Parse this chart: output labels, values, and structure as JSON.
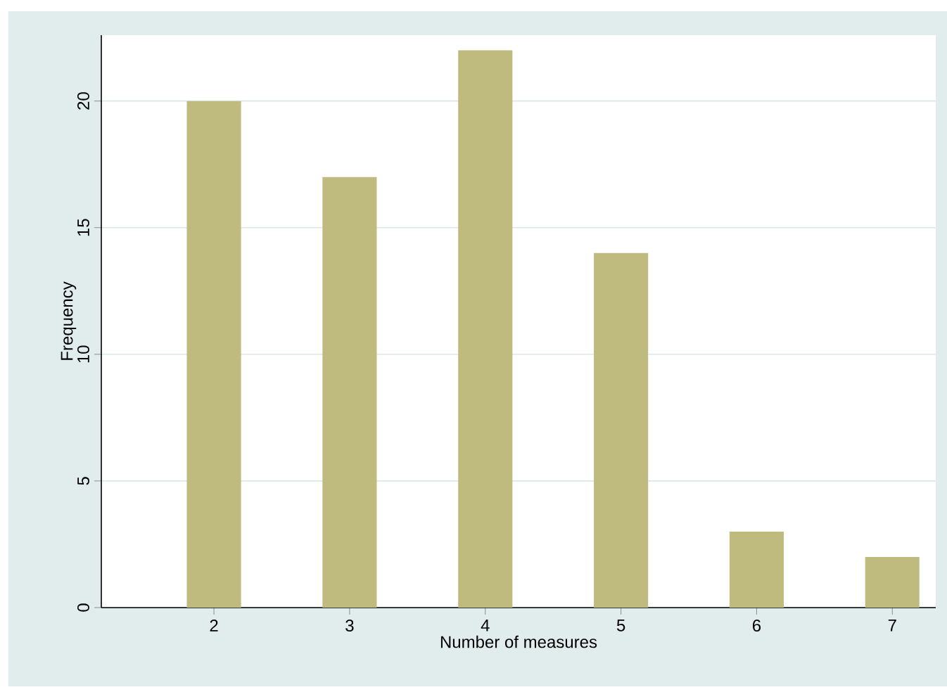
{
  "chart_data": {
    "type": "bar",
    "xlabel": "Number of measures",
    "ylabel": "Frequency",
    "x": [
      2,
      3,
      4,
      5,
      6,
      7
    ],
    "values": [
      20,
      17,
      22,
      14,
      3,
      2
    ],
    "color": "#bfbb7f",
    "xlim": [
      1.17,
      7.32
    ],
    "xticks": [
      2,
      3,
      4,
      5,
      6,
      7
    ],
    "ylim": [
      0,
      22.6
    ],
    "yticks": [
      0,
      5,
      10,
      15,
      20
    ],
    "grid": "y"
  }
}
